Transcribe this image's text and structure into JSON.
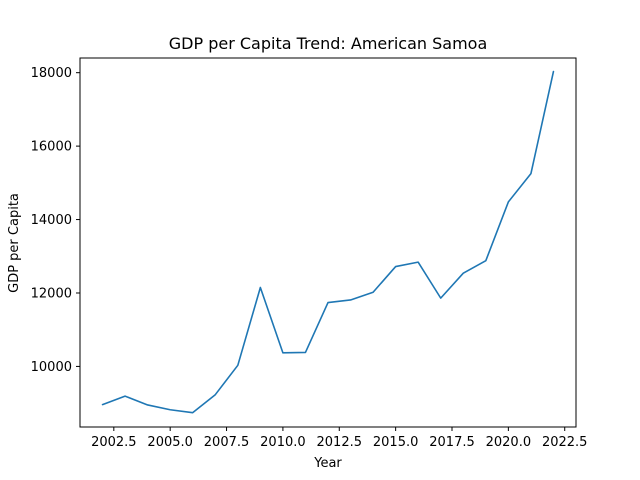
{
  "chart_data": {
    "type": "line",
    "title": "GDP per Capita Trend: American Samoa",
    "xlabel": "Year",
    "ylabel": "GDP per Capita",
    "xlim": [
      2001.0,
      2023.0
    ],
    "ylim": [
      8350,
      18400
    ],
    "x_ticks": [
      2002.5,
      2005.0,
      2007.5,
      2010.0,
      2012.5,
      2015.0,
      2017.5,
      2020.0,
      2022.5
    ],
    "x_tick_labels": [
      "2002.5",
      "2005.0",
      "2007.5",
      "2010.0",
      "2012.5",
      "2015.0",
      "2017.5",
      "2020.0",
      "2022.5"
    ],
    "y_ticks": [
      10000,
      12000,
      14000,
      16000,
      18000
    ],
    "y_tick_labels": [
      "10000",
      "12000",
      "14000",
      "16000",
      "18000"
    ],
    "grid": false,
    "legend": "none",
    "series": [
      {
        "color": "#1f77b4",
        "x": [
          2002,
          2003,
          2004,
          2005,
          2006,
          2007,
          2008,
          2009,
          2010,
          2011,
          2012,
          2013,
          2014,
          2015,
          2016,
          2017,
          2018,
          2019,
          2020,
          2021,
          2022
        ],
        "values": [
          8960,
          9190,
          8950,
          8820,
          8740,
          9230,
          10030,
          12150,
          10370,
          10380,
          11740,
          11810,
          12020,
          12720,
          12840,
          11860,
          12540,
          12880,
          14480,
          15250,
          18030
        ]
      }
    ]
  }
}
